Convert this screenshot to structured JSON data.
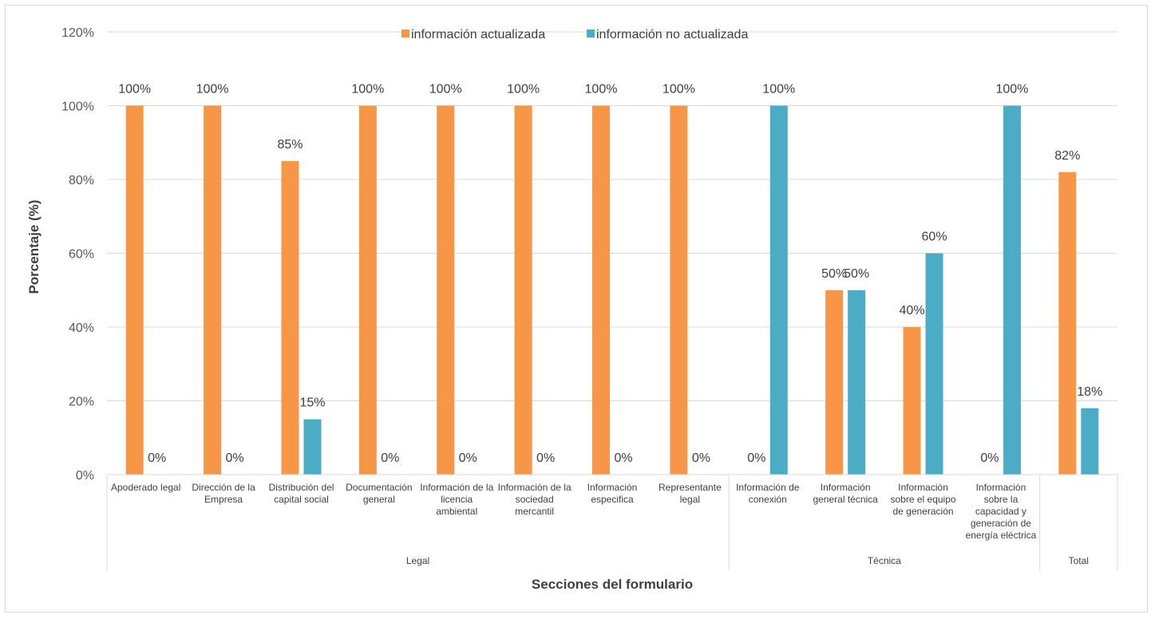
{
  "chart_data": {
    "type": "bar",
    "title": "",
    "xlabel": "Secciones del formulario",
    "ylabel": "Porcentaje (%)",
    "ylim": [
      0,
      120
    ],
    "yticks": [
      "0%",
      "20%",
      "40%",
      "60%",
      "80%",
      "100%",
      "120%"
    ],
    "grid": true,
    "legend_position": "top",
    "categories": [
      [
        "Apoderado legal"
      ],
      [
        "Dirección de la",
        "Empresa"
      ],
      [
        "Distribución del",
        "capital social"
      ],
      [
        "Documentación",
        "general"
      ],
      [
        "Información de la",
        "licencia",
        "ambiental"
      ],
      [
        "Información de la",
        "sociedad",
        "mercantil"
      ],
      [
        "Información",
        "especifica"
      ],
      [
        "Representante",
        "legal"
      ],
      [
        "Información de",
        "conexión"
      ],
      [
        "Información",
        "general técnica"
      ],
      [
        "Información",
        "sobre el equipo",
        "de generación"
      ],
      [
        "Información",
        "sobre la",
        "capacidad y",
        "generación de",
        "energía eléctrica"
      ],
      []
    ],
    "groups": [
      {
        "label": "Legal",
        "start": 0,
        "end": 7
      },
      {
        "label": "Técnica",
        "start": 8,
        "end": 11
      },
      {
        "label": "Total",
        "start": 12,
        "end": 12
      }
    ],
    "series": [
      {
        "name": "información actualizada",
        "color": "#F79646",
        "values": [
          100,
          100,
          85,
          100,
          100,
          100,
          100,
          100,
          0,
          50,
          40,
          0,
          82
        ],
        "labels": [
          "100%",
          "100%",
          "85%",
          "100%",
          "100%",
          "100%",
          "100%",
          "100%",
          "0%",
          "50%",
          "40%",
          "0%",
          "82%"
        ]
      },
      {
        "name": "información no actualizada",
        "color": "#4BACC6",
        "values": [
          0,
          0,
          15,
          0,
          0,
          0,
          0,
          0,
          100,
          50,
          60,
          100,
          18
        ],
        "labels": [
          "0%",
          "0%",
          "15%",
          "0%",
          "0%",
          "0%",
          "0%",
          "0%",
          "100%",
          "50%",
          "60%",
          "100%",
          "18%"
        ]
      }
    ]
  }
}
